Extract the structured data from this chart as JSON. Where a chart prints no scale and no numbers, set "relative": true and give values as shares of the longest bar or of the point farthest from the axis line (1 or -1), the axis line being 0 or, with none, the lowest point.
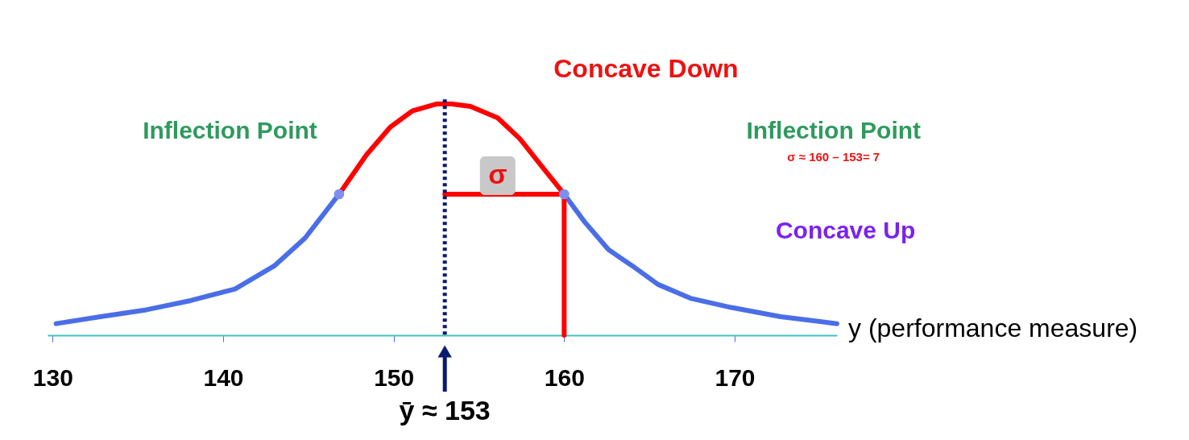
{
  "chart_data": {
    "type": "line",
    "relative": true,
    "xlabel": "y (performance measure)",
    "xlim": [
      129.7,
      176
    ],
    "xticks": [
      130,
      140,
      150,
      160,
      170
    ],
    "grid": false,
    "series": [
      {
        "color": "#4a6ee8",
        "x": [
          130.2,
          132.8,
          135.5,
          138.1,
          140.7,
          143.0,
          144.8,
          146.8
        ],
        "values": [
          0.05,
          0.08,
          0.11,
          0.15,
          0.2,
          0.3,
          0.42,
          0.61
        ]
      },
      {
        "color": "#ff0000",
        "x": [
          146.8,
          148.4,
          149.8,
          151.1,
          152.5,
          153.4,
          154.5,
          156.1,
          157.4,
          158.8,
          160
        ],
        "values": [
          0.61,
          0.78,
          0.9,
          0.97,
          1.0,
          1.0,
          0.99,
          0.94,
          0.85,
          0.72,
          0.61
        ]
      },
      {
        "color": "#4a6ee8",
        "x": [
          160,
          161.2,
          162.6,
          164.0,
          165.5,
          167.4,
          169.8,
          172.7,
          176.0
        ],
        "values": [
          0.61,
          0.49,
          0.37,
          0.3,
          0.22,
          0.16,
          0.12,
          0.08,
          0.05
        ]
      },
      {
        "color": "#ff0000",
        "x": [
          153,
          160,
          160
        ],
        "values": [
          0.61,
          0.61,
          0
        ]
      },
      {
        "type": "scatter",
        "color": "#7f8ff0",
        "x": [
          146.8,
          160
        ],
        "values": [
          0.61,
          0.61
        ]
      }
    ],
    "ref_lines": [
      {
        "axis": "x",
        "value": 153,
        "label": "ȳ ≈ 153",
        "color": "#0a1a6e",
        "line_style": "dotted"
      }
    ],
    "annotations": [
      "Concave Down",
      "Inflection Point",
      "Inflection Point",
      "σ ≈ 160 – 153= 7",
      "Concave Up",
      "σ"
    ]
  }
}
